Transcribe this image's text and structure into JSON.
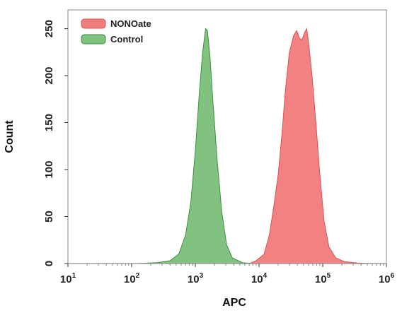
{
  "chart_data": {
    "type": "area",
    "title": "",
    "xlabel": "APC",
    "ylabel": "Count",
    "x_scale": "log",
    "xlim": [
      10,
      1000000
    ],
    "ylim": [
      0,
      270
    ],
    "x_ticks": [
      10,
      100,
      1000,
      10000,
      100000,
      1000000
    ],
    "x_tick_bases": [
      "10",
      "10",
      "10",
      "10",
      "10",
      "10"
    ],
    "x_tick_exps": [
      "1",
      "2",
      "3",
      "4",
      "5",
      "6"
    ],
    "y_ticks": [
      0,
      50,
      100,
      150,
      200,
      250
    ],
    "y_tick_labels": [
      "0",
      "50",
      "100",
      "150",
      "200",
      "250"
    ],
    "grid": false,
    "legend_position": "top-left",
    "series": [
      {
        "name": "NONOate",
        "color": "#f07070",
        "edge_color": "#e05050",
        "points": [
          [
            7000,
            0
          ],
          [
            9000,
            3
          ],
          [
            12000,
            10
          ],
          [
            14500,
            30
          ],
          [
            17000,
            60
          ],
          [
            20000,
            95
          ],
          [
            23000,
            140
          ],
          [
            26000,
            185
          ],
          [
            30000,
            225
          ],
          [
            35000,
            243
          ],
          [
            39000,
            248
          ],
          [
            43000,
            240
          ],
          [
            47000,
            238
          ],
          [
            52000,
            246
          ],
          [
            56000,
            250
          ],
          [
            60000,
            235
          ],
          [
            68000,
            200
          ],
          [
            78000,
            150
          ],
          [
            90000,
            95
          ],
          [
            105000,
            45
          ],
          [
            125000,
            18
          ],
          [
            160000,
            6
          ],
          [
            220000,
            2
          ],
          [
            350000,
            0.5
          ],
          [
            550000,
            0
          ]
        ]
      },
      {
        "name": "Control",
        "color": "#6fba6f",
        "edge_color": "#3f8f3f",
        "points": [
          [
            120,
            0
          ],
          [
            250,
            1
          ],
          [
            400,
            3
          ],
          [
            550,
            10
          ],
          [
            700,
            30
          ],
          [
            850,
            65
          ],
          [
            1000,
            120
          ],
          [
            1150,
            180
          ],
          [
            1300,
            225
          ],
          [
            1450,
            250
          ],
          [
            1550,
            248
          ],
          [
            1700,
            220
          ],
          [
            1900,
            170
          ],
          [
            2200,
            110
          ],
          [
            2600,
            55
          ],
          [
            3100,
            20
          ],
          [
            3800,
            6
          ],
          [
            5500,
            1
          ],
          [
            8000,
            0
          ]
        ]
      }
    ]
  }
}
